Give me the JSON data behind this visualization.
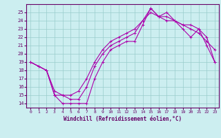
{
  "xlabel": "Windchill (Refroidissement éolien,°C)",
  "background_color": "#cceef0",
  "grid_color": "#99cccc",
  "line_color": "#aa00aa",
  "xlim": [
    -0.5,
    23.5
  ],
  "ylim": [
    13.5,
    26.0
  ],
  "yticks": [
    14,
    15,
    16,
    17,
    18,
    19,
    20,
    21,
    22,
    23,
    24,
    25
  ],
  "xticks": [
    0,
    1,
    2,
    3,
    4,
    5,
    6,
    7,
    8,
    9,
    10,
    11,
    12,
    13,
    14,
    15,
    16,
    17,
    18,
    19,
    20,
    21,
    22,
    23
  ],
  "curve1_x": [
    0,
    1,
    2,
    3,
    4,
    5,
    6,
    7,
    8,
    9,
    10,
    11,
    12,
    13,
    14,
    15,
    16,
    17,
    18,
    19,
    20,
    21,
    22,
    23
  ],
  "curve1_y": [
    19,
    18.5,
    18,
    15,
    14,
    14,
    14,
    14,
    17,
    19,
    20.5,
    21,
    21.5,
    21.5,
    23.5,
    25.5,
    24.5,
    25,
    24,
    23,
    22,
    23,
    21,
    19
  ],
  "curve2_x": [
    0,
    1,
    2,
    3,
    4,
    5,
    6,
    7,
    8,
    9,
    10,
    11,
    12,
    13,
    14,
    15,
    16,
    17,
    18,
    19,
    20,
    21,
    22,
    23
  ],
  "curve2_y": [
    19,
    18.5,
    18,
    15,
    15,
    14.5,
    14.5,
    16,
    18.5,
    20,
    21,
    21.5,
    22,
    22.5,
    24,
    25.5,
    24.5,
    24.5,
    24,
    23.5,
    23,
    22.5,
    21.5,
    20.5
  ],
  "curve3_x": [
    0,
    1,
    2,
    3,
    4,
    5,
    6,
    7,
    8,
    9,
    10,
    11,
    12,
    13,
    14,
    15,
    16,
    17,
    18,
    19,
    20,
    21,
    22,
    23
  ],
  "curve3_y": [
    19,
    18.5,
    18,
    15.5,
    15,
    15,
    15.5,
    17,
    19,
    20.5,
    21.5,
    22,
    22.5,
    23,
    24,
    25,
    24.5,
    24,
    24,
    23.5,
    23.5,
    23,
    22,
    19
  ]
}
